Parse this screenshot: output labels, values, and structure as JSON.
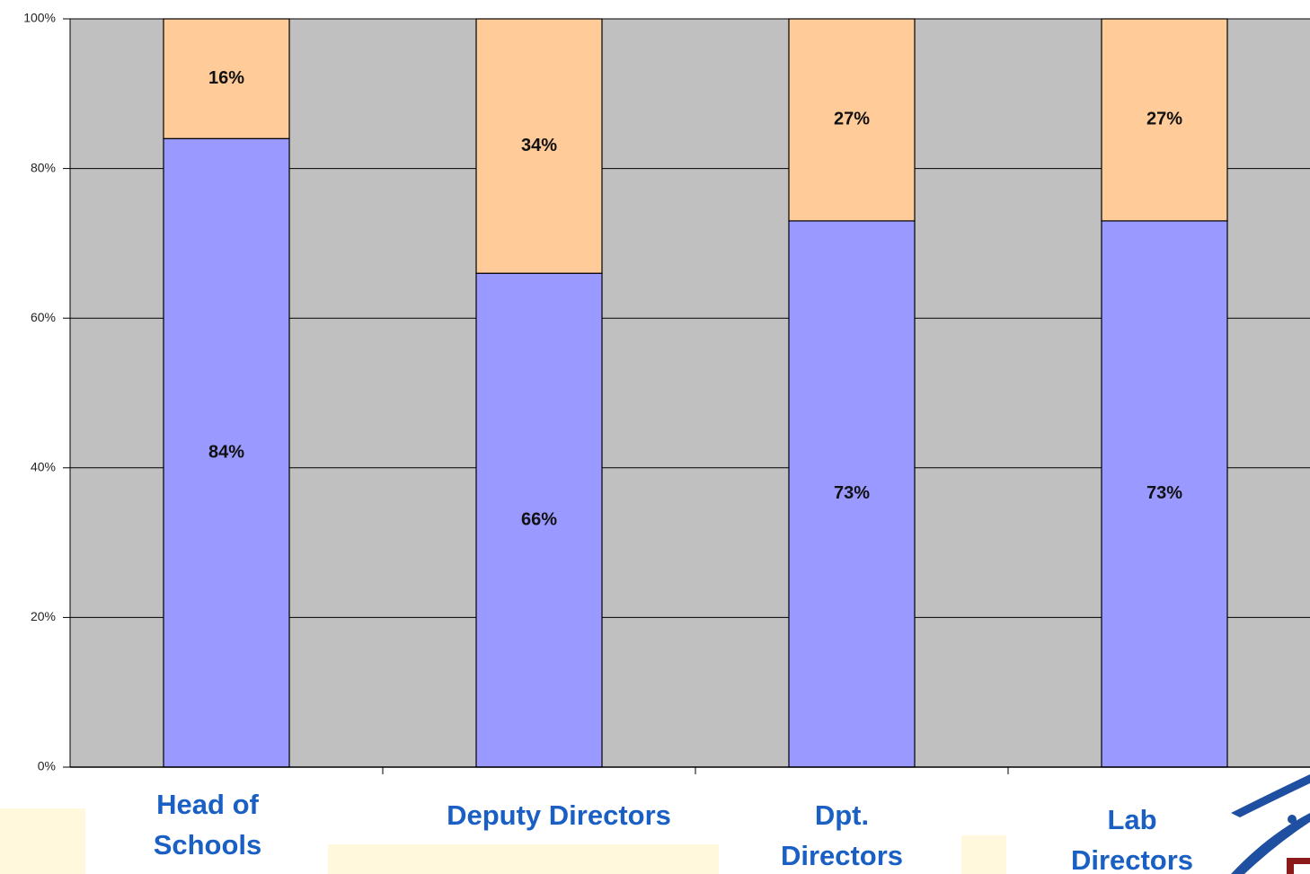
{
  "chart_data": {
    "type": "stacked_bar",
    "categories": [
      "Head of Schools",
      "Deputy Directors",
      "Dpt. Directors",
      "Lab Directors"
    ],
    "series": [
      {
        "color": "#9999ff",
        "values": [
          84,
          66,
          73,
          73
        ],
        "value_labels": [
          "84%",
          "66%",
          "73%",
          "73%"
        ]
      },
      {
        "color": "#ffcc99",
        "values": [
          16,
          34,
          27,
          27
        ],
        "value_labels": [
          "16%",
          "34%",
          "27%",
          "27%"
        ]
      }
    ],
    "ylim": [
      0,
      100
    ],
    "yticks": [
      {
        "value": 0,
        "label": "0%"
      },
      {
        "value": 20,
        "label": "20%"
      },
      {
        "value": 40,
        "label": "40%"
      },
      {
        "value": 60,
        "label": "60%"
      },
      {
        "value": 80,
        "label": "80%"
      },
      {
        "value": 100,
        "label": "100%"
      }
    ],
    "grid": true,
    "plot_background": "#c0c0c0",
    "category_label_color": "#1a5fc4"
  }
}
